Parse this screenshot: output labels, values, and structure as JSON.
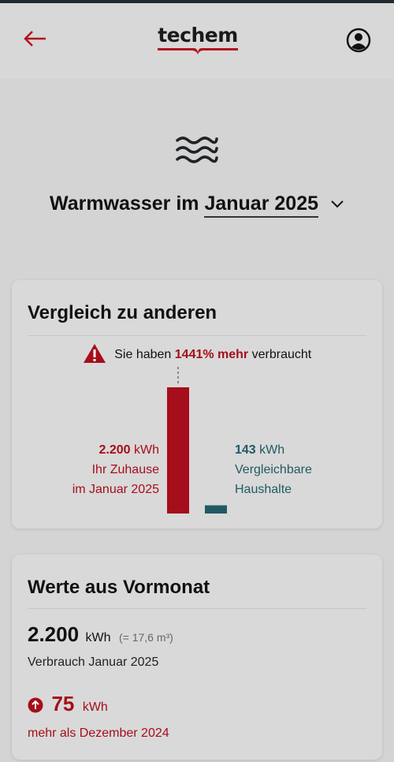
{
  "header": {
    "logo_text": "techem"
  },
  "page": {
    "title_prefix": "Warmwasser im",
    "month": "Januar 2025"
  },
  "comparison": {
    "title": "Vergleich zu anderen",
    "warning_pre": "Sie haben",
    "warning_highlight": "1441% mehr",
    "warning_post": "verbraucht",
    "home_value": "2.200",
    "home_unit": "kWh",
    "home_label_1": "Ihr Zuhause",
    "home_label_2": "im Januar 2025",
    "others_value": "143",
    "others_unit": "kWh",
    "others_label_1": "Vergleichbare",
    "others_label_2": "Haushalte"
  },
  "chart_data": {
    "type": "bar",
    "categories": [
      "Ihr Zuhause im Januar 2025",
      "Vergleichbare Haushalte"
    ],
    "values": [
      2200,
      143
    ],
    "colors": [
      "#a50e1a",
      "#1f5a64"
    ],
    "unit": "kWh"
  },
  "previous_month": {
    "title": "Werte aus Vormonat",
    "value": "2.200",
    "unit": "kWh",
    "equiv": "(= 17,6 m³)",
    "consumption_label": "Verbrauch Januar 2025",
    "diff_value": "75",
    "diff_unit": "kWh",
    "diff_label": "mehr als Dezember 2024"
  },
  "colors": {
    "accent_red": "#a50e1a",
    "teal": "#1f5a64",
    "background": "#d4d4d4"
  }
}
